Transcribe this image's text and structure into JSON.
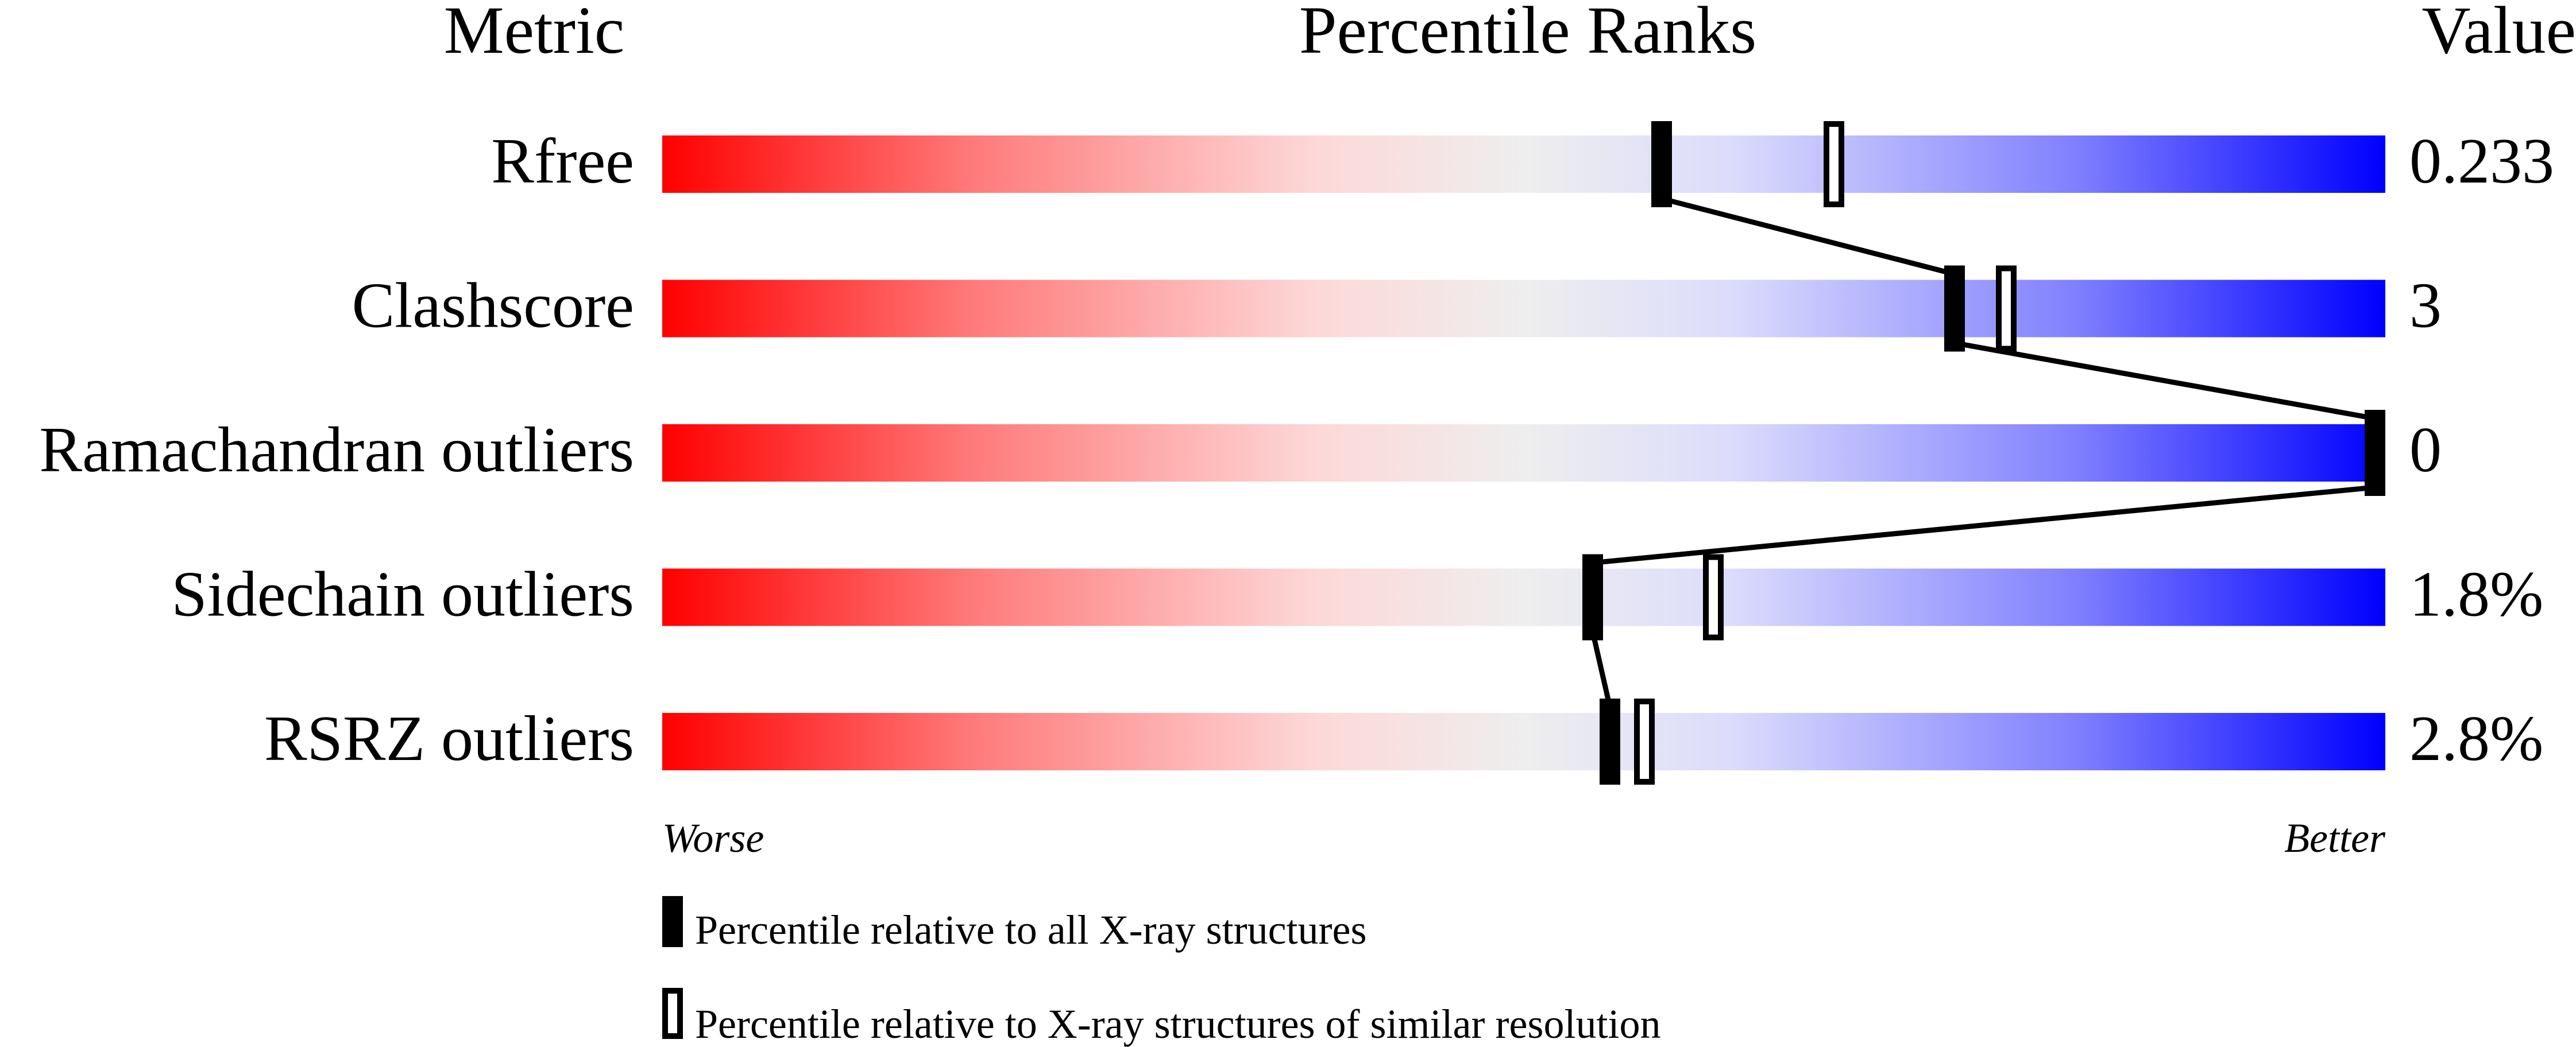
{
  "chart_data": {
    "type": "bar",
    "headers": {
      "metric": "Metric",
      "percentile": "Percentile Ranks",
      "value": "Value"
    },
    "xlim": [
      0,
      100
    ],
    "axis_labels": {
      "left": "Worse",
      "right": "Better"
    },
    "gradient_colors": [
      "#ff0000",
      "#ff7a7a",
      "#fdd8d8",
      "#eeeeee",
      "#dcdcfc",
      "#8080ff",
      "#0000ff"
    ],
    "rows": [
      {
        "metric": "Rfree",
        "value": "0.233",
        "percentile_all": 58,
        "percentile_similar": 68
      },
      {
        "metric": "Clashscore",
        "value": "3",
        "percentile_all": 75,
        "percentile_similar": 78
      },
      {
        "metric": "Ramachandran outliers",
        "value": "0",
        "percentile_all": 100,
        "percentile_similar": 100
      },
      {
        "metric": "Sidechain outliers",
        "value": "1.8%",
        "percentile_all": 54,
        "percentile_similar": 61
      },
      {
        "metric": "RSRZ outliers",
        "value": "2.8%",
        "percentile_all": 55,
        "percentile_similar": 57
      }
    ],
    "legend": {
      "all": "Percentile relative to all X-ray structures",
      "similar": "Percentile relative to X-ray structures of similar resolution"
    }
  }
}
